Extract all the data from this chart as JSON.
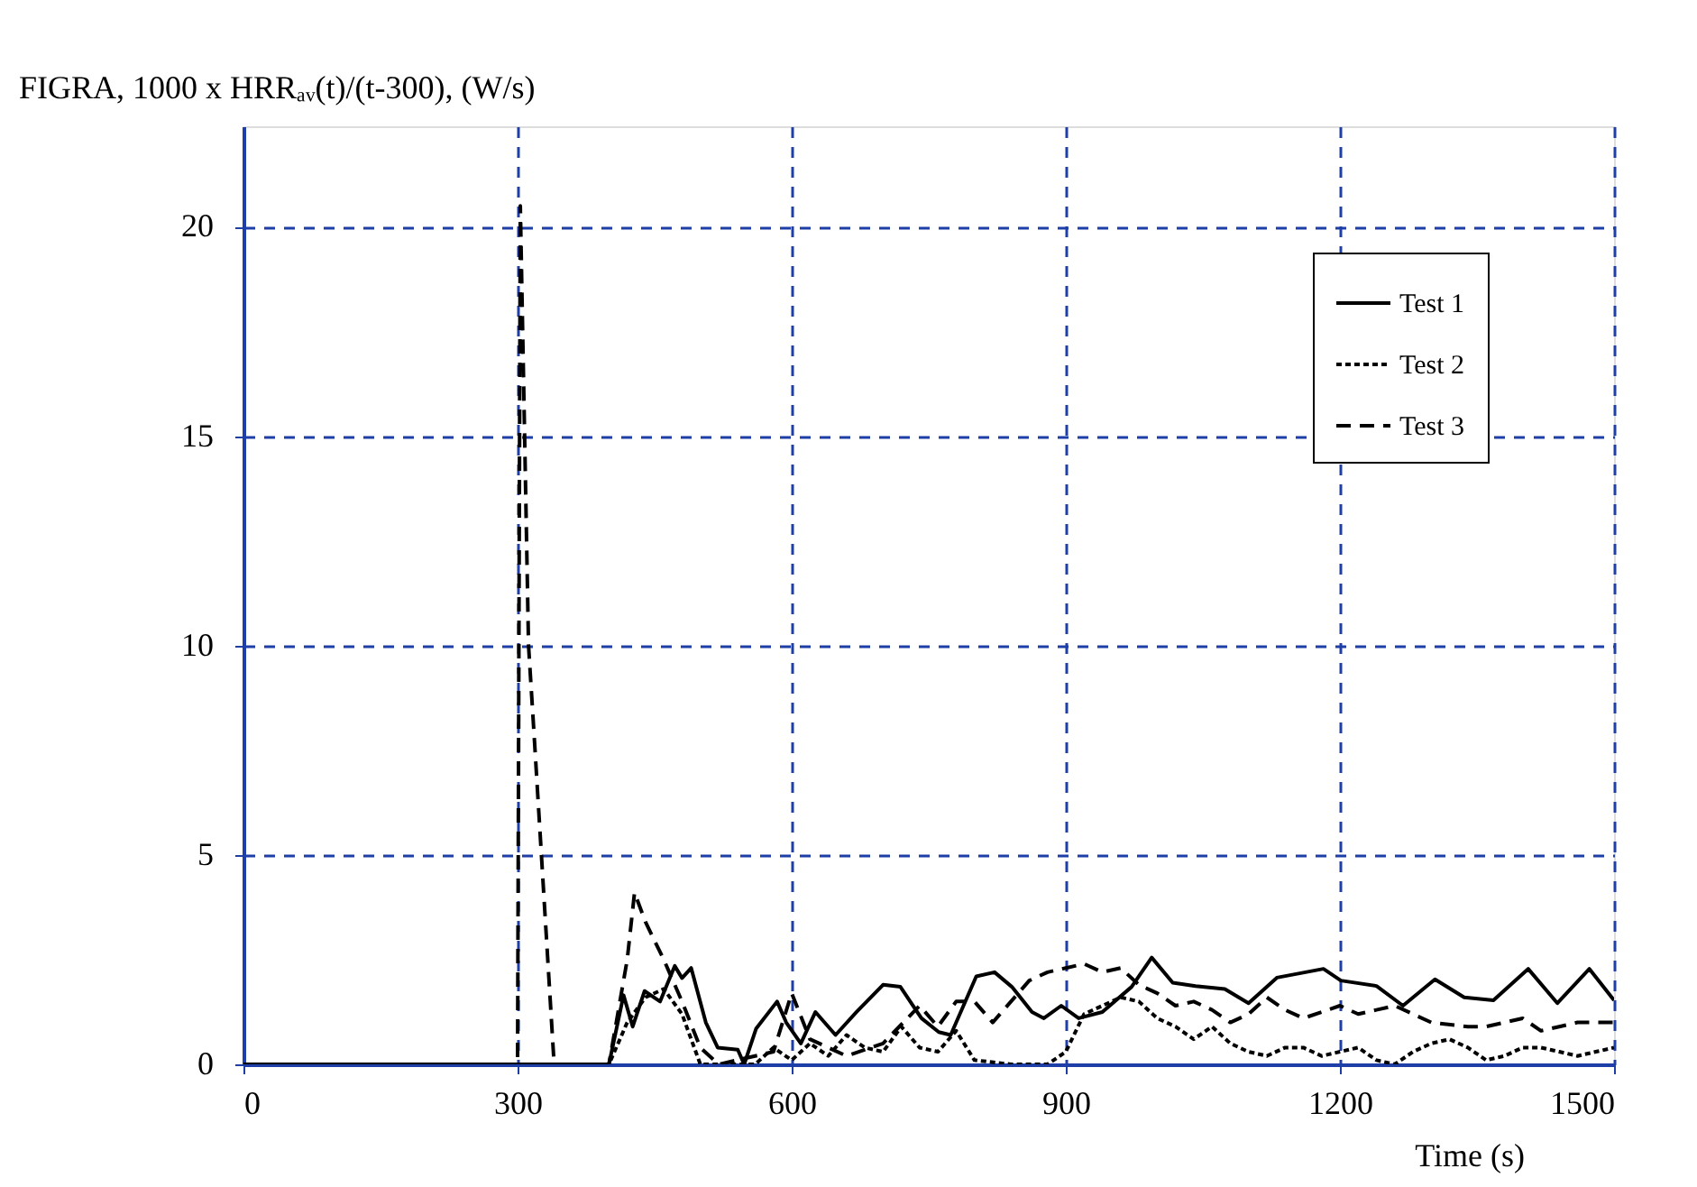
{
  "chart_data": {
    "type": "line",
    "ylabel": "FIGRA, 1000 x HRRₐᵥ(t)/(t-300), (W/s)",
    "xlabel": "Time (s)",
    "xlim": [
      0,
      1500
    ],
    "xticks": [
      0,
      300,
      600,
      900,
      1200,
      1500
    ],
    "ylim": [
      0,
      22.4
    ],
    "yticks": [
      0,
      5,
      10,
      15,
      20
    ],
    "grid": true,
    "legend": "top right",
    "series": [
      {
        "name": "Test 1",
        "color": "#000000",
        "line_style": "solid",
        "x": [
          0,
          400,
          416,
          426,
          439,
          456,
          472,
          480,
          490,
          506,
          519,
          541,
          548,
          561,
          584,
          594,
          610,
          626,
          648,
          671,
          700,
          719,
          742,
          761,
          774,
          802,
          822,
          841,
          863,
          876,
          895,
          914,
          940,
          972,
          994,
          1017,
          1042,
          1074,
          1100,
          1131,
          1182,
          1201,
          1240,
          1269,
          1304,
          1336,
          1368,
          1406,
          1438,
          1473,
          1500
        ],
        "values": [
          0,
          0,
          1.65,
          0.9,
          1.75,
          1.5,
          2.35,
          2.06,
          2.3,
          1.0,
          0.4,
          0.35,
          0,
          0.85,
          1.5,
          1.0,
          0.5,
          1.25,
          0.7,
          1.25,
          1.9,
          1.85,
          1.1,
          0.77,
          0.7,
          2.1,
          2.2,
          1.85,
          1.25,
          1.1,
          1.4,
          1.1,
          1.25,
          1.85,
          2.55,
          1.95,
          1.87,
          1.8,
          1.46,
          2.07,
          2.28,
          2.0,
          1.87,
          1.4,
          2.03,
          1.6,
          1.53,
          2.28,
          1.46,
          2.28,
          1.53
        ]
      },
      {
        "name": "Test 2",
        "color": "#000000",
        "line_style": "dotted",
        "x": [
          0,
          400,
          420,
          440,
          460,
          480,
          500,
          560,
          580,
          600,
          620,
          640,
          660,
          680,
          700,
          720,
          740,
          760,
          780,
          800,
          840,
          880,
          900,
          920,
          960,
          980,
          1000,
          1020,
          1040,
          1060,
          1080,
          1100,
          1120,
          1140,
          1160,
          1180,
          1200,
          1220,
          1240,
          1260,
          1280,
          1300,
          1320,
          1340,
          1360,
          1380,
          1400,
          1420,
          1440,
          1460,
          1500
        ],
        "values": [
          0,
          0,
          1.0,
          1.6,
          1.8,
          1.2,
          0,
          0,
          0.4,
          0.1,
          0.5,
          0.2,
          0.7,
          0.4,
          0.3,
          0.9,
          0.4,
          0.3,
          0.8,
          0.1,
          0,
          0,
          0.3,
          1.2,
          1.6,
          1.5,
          1.1,
          0.9,
          0.6,
          0.9,
          0.5,
          0.3,
          0.2,
          0.4,
          0.4,
          0.2,
          0.3,
          0.4,
          0.1,
          0,
          0.3,
          0.5,
          0.6,
          0.4,
          0.1,
          0.2,
          0.4,
          0.4,
          0.3,
          0.2,
          0.4
        ]
      },
      {
        "name": "Test 3",
        "color": "#000000",
        "line_style": "dashed",
        "x": [
          0,
          300,
          303,
          312,
          318,
          340,
          400,
          420,
          428,
          440,
          460,
          480,
          500,
          520,
          580,
          600,
          620,
          660,
          700,
          740,
          760,
          780,
          800,
          820,
          860,
          880,
          900,
          920,
          940,
          960,
          980,
          1000,
          1020,
          1040,
          1060,
          1080,
          1100,
          1120,
          1140,
          1160,
          1200,
          1220,
          1240,
          1260,
          1280,
          1300,
          1340,
          1360,
          1400,
          1420,
          1440,
          1460,
          1500
        ],
        "values": [
          0,
          0,
          20.5,
          10,
          7.9,
          0,
          0,
          2.5,
          4.1,
          3.4,
          2.5,
          1.5,
          0.4,
          0,
          0.3,
          1.7,
          0.6,
          0.2,
          0.5,
          1.4,
          0.9,
          1.5,
          1.5,
          1.0,
          2.0,
          2.2,
          2.3,
          2.4,
          2.2,
          2.3,
          1.9,
          1.7,
          1.4,
          1.5,
          1.3,
          1.0,
          1.2,
          1.6,
          1.3,
          1.1,
          1.4,
          1.2,
          1.3,
          1.4,
          1.2,
          1.0,
          0.9,
          0.9,
          1.1,
          0.8,
          0.9,
          1.0,
          1.0
        ]
      }
    ]
  }
}
